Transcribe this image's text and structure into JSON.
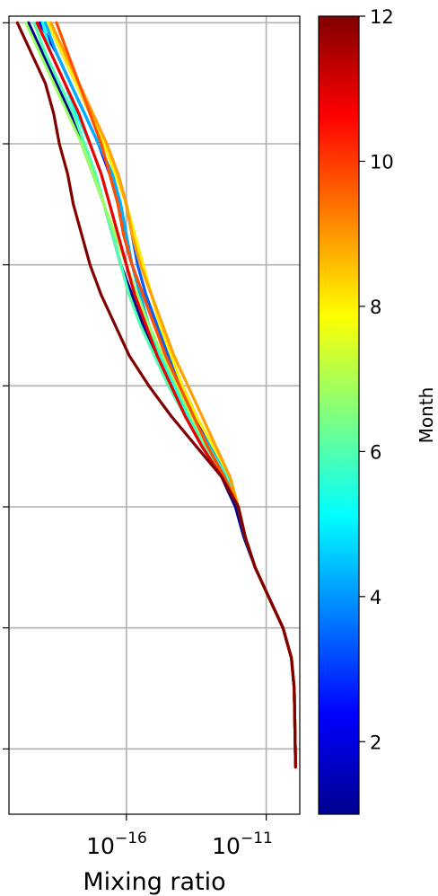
{
  "chart_data": {
    "type": "line",
    "title": "",
    "xlabel": "Mixing ratio",
    "ylabel": "",
    "x_scale": "log",
    "x_tick_labels": [
      {
        "base": "10",
        "exp": "−16",
        "value_log10": -16
      },
      {
        "base": "10",
        "exp": "−11",
        "value_log10": -11
      }
    ],
    "xlim_log10": [
      -20.2,
      -9.8
    ],
    "ylim": [
      0.0,
      12.0
    ],
    "y_ticks": [
      0.5,
      2.5,
      4.5,
      6.5,
      8.5,
      10.5,
      12.5
    ],
    "y_tick_labels_shown": false,
    "grid": true,
    "colorbar": {
      "label": "Month",
      "colormap": "jet",
      "range": [
        1,
        12
      ],
      "ticks": [
        2,
        4,
        6,
        8,
        10,
        12
      ],
      "tick_labels": [
        "2",
        "4",
        "6",
        "8",
        "10",
        "12"
      ]
    },
    "profile_y": [
      0.2,
      0.5,
      1.0,
      1.5,
      2.0,
      2.5,
      3.0,
      3.5,
      4.0,
      4.5,
      5.0,
      5.5,
      6.0,
      6.5,
      7.0,
      7.5,
      8.0,
      8.5,
      9.0,
      9.5,
      10.0,
      10.5,
      11.0,
      11.5,
      12.0,
      12.5
    ],
    "series": [
      {
        "month": 1,
        "color": "#00008f",
        "x_log10": [
          -9.95,
          -9.96,
          -9.98,
          -10.0,
          -10.1,
          -10.4,
          -10.9,
          -11.4,
          -11.8,
          -12.1,
          -12.6,
          -13.3,
          -13.9,
          -14.4,
          -14.9,
          -15.4,
          -15.8,
          -16.2,
          -16.5,
          -16.8,
          -17.2,
          -17.6,
          -18.0,
          -18.5,
          -19.0,
          -19.5
        ]
      },
      {
        "month": 2,
        "color": "#0000ff",
        "x_log10": [
          -9.95,
          -9.96,
          -9.98,
          -10.0,
          -10.1,
          -10.4,
          -10.9,
          -11.4,
          -11.75,
          -12.0,
          -12.4,
          -13.0,
          -13.5,
          -14.0,
          -14.5,
          -15.0,
          -15.4,
          -15.8,
          -16.1,
          -16.3,
          -16.6,
          -17.0,
          -17.5,
          -18.0,
          -18.5,
          -19.1
        ]
      },
      {
        "month": 3,
        "color": "#0060ff",
        "x_log10": [
          -9.95,
          -9.96,
          -9.98,
          -10.0,
          -10.1,
          -10.4,
          -10.9,
          -11.4,
          -11.75,
          -12.0,
          -12.3,
          -12.9,
          -13.5,
          -14.0,
          -14.5,
          -14.9,
          -15.3,
          -15.6,
          -15.8,
          -16.0,
          -16.3,
          -16.8,
          -17.3,
          -17.8,
          -18.3,
          -18.8
        ]
      },
      {
        "month": 4,
        "color": "#00b0ff",
        "x_log10": [
          -9.95,
          -9.96,
          -9.98,
          -10.0,
          -10.1,
          -10.4,
          -10.9,
          -11.4,
          -11.75,
          -12.0,
          -12.4,
          -13.0,
          -13.7,
          -14.2,
          -14.7,
          -15.2,
          -15.5,
          -15.8,
          -16.0,
          -16.2,
          -16.5,
          -17.0,
          -17.5,
          -18.0,
          -18.5,
          -18.9
        ]
      },
      {
        "month": 5,
        "color": "#10ffef",
        "x_log10": [
          -9.95,
          -9.96,
          -9.98,
          -10.0,
          -10.1,
          -10.4,
          -10.9,
          -11.4,
          -11.75,
          -12.0,
          -12.4,
          -13.1,
          -13.8,
          -14.3,
          -14.8,
          -15.3,
          -15.7,
          -16.0,
          -16.3,
          -16.6,
          -16.9,
          -17.3,
          -17.8,
          -18.2,
          -18.7,
          -19.0
        ]
      },
      {
        "month": 6,
        "color": "#50ffaf",
        "x_log10": [
          -9.95,
          -9.96,
          -9.98,
          -10.0,
          -10.1,
          -10.4,
          -10.9,
          -11.4,
          -11.75,
          -12.0,
          -12.5,
          -13.2,
          -13.9,
          -14.5,
          -15.0,
          -15.5,
          -15.9,
          -16.2,
          -16.5,
          -16.8,
          -17.1,
          -17.5,
          -17.9,
          -18.4,
          -18.9,
          -19.3
        ]
      },
      {
        "month": 7,
        "color": "#a0ff60",
        "x_log10": [
          -9.95,
          -9.96,
          -9.98,
          -10.0,
          -10.1,
          -10.4,
          -10.9,
          -11.4,
          -11.75,
          -12.0,
          -12.5,
          -13.1,
          -13.7,
          -14.2,
          -14.7,
          -15.2,
          -15.6,
          -16.0,
          -16.4,
          -16.8,
          -17.2,
          -17.6,
          -18.1,
          -18.6,
          -19.1,
          -19.6
        ]
      },
      {
        "month": 8,
        "color": "#ffef00",
        "x_log10": [
          -9.95,
          -9.96,
          -9.98,
          -10.0,
          -10.1,
          -10.4,
          -10.9,
          -11.4,
          -11.75,
          -12.0,
          -12.3,
          -12.9,
          -13.5,
          -14.0,
          -14.4,
          -14.8,
          -15.1,
          -15.4,
          -15.7,
          -16.0,
          -16.4,
          -16.8,
          -17.3,
          -17.8,
          -18.3,
          -18.8
        ]
      },
      {
        "month": 9,
        "color": "#ff9f00",
        "x_log10": [
          -9.95,
          -9.96,
          -9.98,
          -10.0,
          -10.1,
          -10.4,
          -10.9,
          -11.4,
          -11.75,
          -12.0,
          -12.3,
          -12.8,
          -13.3,
          -13.8,
          -14.3,
          -14.7,
          -15.1,
          -15.5,
          -15.8,
          -16.0,
          -16.3,
          -16.7,
          -17.2,
          -17.7,
          -18.2,
          -18.7
        ]
      },
      {
        "month": 10,
        "color": "#ff5000",
        "x_log10": [
          -9.95,
          -9.96,
          -9.98,
          -10.0,
          -10.1,
          -10.4,
          -10.9,
          -11.4,
          -11.75,
          -12.0,
          -12.5,
          -13.1,
          -13.6,
          -14.1,
          -14.6,
          -15.0,
          -15.4,
          -15.8,
          -16.1,
          -16.3,
          -16.6,
          -16.9,
          -17.3,
          -17.7,
          -18.1,
          -18.5
        ]
      },
      {
        "month": 11,
        "color": "#ef0000",
        "x_log10": [
          -9.95,
          -9.96,
          -9.98,
          -10.0,
          -10.1,
          -10.4,
          -10.9,
          -11.4,
          -11.75,
          -12.0,
          -12.6,
          -13.3,
          -13.9,
          -14.4,
          -14.9,
          -15.3,
          -15.7,
          -16.0,
          -16.3,
          -16.6,
          -16.9,
          -17.3,
          -17.7,
          -18.2,
          -18.7,
          -19.2
        ]
      },
      {
        "month": 12,
        "color": "#800000",
        "x_log10": [
          -9.95,
          -9.96,
          -9.98,
          -10.0,
          -10.1,
          -10.4,
          -10.9,
          -11.4,
          -11.75,
          -12.0,
          -12.6,
          -13.5,
          -14.4,
          -15.2,
          -15.9,
          -16.4,
          -16.9,
          -17.3,
          -17.6,
          -17.9,
          -18.1,
          -18.4,
          -18.6,
          -18.9,
          -19.4,
          -19.9
        ]
      }
    ]
  }
}
